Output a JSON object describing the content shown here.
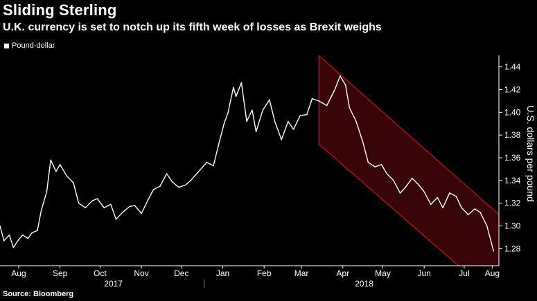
{
  "title": "Sliding Sterling",
  "subtitle": "U.K. currency is set to notch up its fifth week of losses as Brexit weighs",
  "source": "Source: Bloomberg",
  "colors": {
    "background": "#000000",
    "line": "#ffffff",
    "channel_fill": "#3a0508",
    "channel_edge": "#c0141e"
  },
  "chart_data": {
    "type": "line",
    "title": "Sliding Sterling",
    "subtitle": "U.K. currency is set to notch up its fifth week of losses as Brexit weighs",
    "ylabel": "U.S. dollars per pound",
    "ylim": [
      1.265,
      1.455
    ],
    "yticks": [
      1.28,
      1.3,
      1.32,
      1.34,
      1.36,
      1.38,
      1.4,
      1.42,
      1.44
    ],
    "ytick_labels": [
      "1.28",
      "1.30",
      "1.32",
      "1.34",
      "1.36",
      "1.38",
      "1.40",
      "1.42",
      "1.44"
    ],
    "xlim": [
      "2017-08-01",
      "2018-08-10"
    ],
    "month_ticks": [
      "2017-08-15",
      "2017-09-15",
      "2017-10-15",
      "2017-11-15",
      "2017-12-15",
      "2018-01-15",
      "2018-02-15",
      "2018-03-15",
      "2018-04-15",
      "2018-05-15",
      "2018-06-15",
      "2018-07-15",
      "2018-08-05"
    ],
    "month_labels": [
      "Aug",
      "Sep",
      "Oct",
      "Nov",
      "Dec",
      "Jan",
      "Feb",
      "Mar",
      "Apr",
      "May",
      "Jun",
      "Jul",
      "Aug"
    ],
    "year_labels": [
      {
        "label": "2017",
        "date": "2017-10-25"
      },
      {
        "label": "2018",
        "date": "2018-05-01"
      }
    ],
    "year_divider": "2018-01-01",
    "legend": "top-left",
    "grid": false,
    "series": [
      {
        "name": "Pound-dollar",
        "x": [
          "2017-08-01",
          "2017-08-04",
          "2017-08-08",
          "2017-08-11",
          "2017-08-15",
          "2017-08-18",
          "2017-08-22",
          "2017-08-25",
          "2017-08-29",
          "2017-09-01",
          "2017-09-05",
          "2017-09-08",
          "2017-09-12",
          "2017-09-15",
          "2017-09-20",
          "2017-09-25",
          "2017-09-29",
          "2017-10-04",
          "2017-10-09",
          "2017-10-13",
          "2017-10-18",
          "2017-10-23",
          "2017-10-27",
          "2017-11-01",
          "2017-11-06",
          "2017-11-10",
          "2017-11-15",
          "2017-11-20",
          "2017-11-24",
          "2017-11-29",
          "2017-12-04",
          "2017-12-08",
          "2017-12-13",
          "2017-12-18",
          "2017-12-22",
          "2017-12-28",
          "2018-01-03",
          "2018-01-08",
          "2018-01-12",
          "2018-01-16",
          "2018-01-19",
          "2018-01-23",
          "2018-01-25",
          "2018-01-29",
          "2018-02-02",
          "2018-02-06",
          "2018-02-09",
          "2018-02-14",
          "2018-02-19",
          "2018-02-23",
          "2018-02-28",
          "2018-03-05",
          "2018-03-09",
          "2018-03-14",
          "2018-03-19",
          "2018-03-23",
          "2018-03-28",
          "2018-04-03",
          "2018-04-09",
          "2018-04-13",
          "2018-04-17",
          "2018-04-20",
          "2018-04-25",
          "2018-04-30",
          "2018-05-04",
          "2018-05-09",
          "2018-05-14",
          "2018-05-18",
          "2018-05-23",
          "2018-05-28",
          "2018-06-01",
          "2018-06-06",
          "2018-06-11",
          "2018-06-15",
          "2018-06-20",
          "2018-06-25",
          "2018-06-29",
          "2018-07-04",
          "2018-07-09",
          "2018-07-13",
          "2018-07-18",
          "2018-07-23",
          "2018-07-27",
          "2018-08-01",
          "2018-08-06"
        ],
        "values": [
          1.3,
          1.287,
          1.292,
          1.281,
          1.288,
          1.292,
          1.289,
          1.294,
          1.296,
          1.314,
          1.33,
          1.358,
          1.348,
          1.354,
          1.344,
          1.338,
          1.32,
          1.316,
          1.322,
          1.324,
          1.316,
          1.319,
          1.306,
          1.312,
          1.317,
          1.318,
          1.311,
          1.323,
          1.332,
          1.335,
          1.346,
          1.339,
          1.334,
          1.336,
          1.34,
          1.348,
          1.356,
          1.353,
          1.372,
          1.39,
          1.4,
          1.422,
          1.414,
          1.426,
          1.392,
          1.402,
          1.383,
          1.402,
          1.411,
          1.392,
          1.376,
          1.392,
          1.385,
          1.397,
          1.398,
          1.412,
          1.41,
          1.406,
          1.42,
          1.432,
          1.424,
          1.404,
          1.392,
          1.374,
          1.356,
          1.352,
          1.354,
          1.346,
          1.34,
          1.329,
          1.334,
          1.342,
          1.336,
          1.33,
          1.319,
          1.325,
          1.316,
          1.329,
          1.326,
          1.316,
          1.31,
          1.315,
          1.312,
          1.3,
          1.278
        ]
      }
    ],
    "channel": {
      "start": "2018-03-28",
      "end": "2018-08-10",
      "upper": [
        1.45,
        1.31
      ],
      "lower": [
        1.372,
        1.234
      ]
    }
  }
}
